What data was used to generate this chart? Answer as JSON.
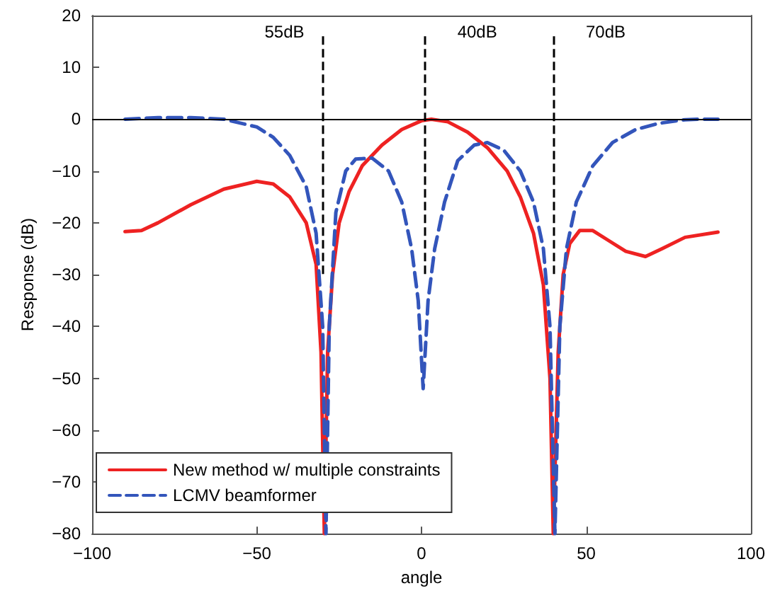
{
  "chart_data": {
    "type": "line",
    "xlabel": "angle",
    "ylabel": "Response (dB)",
    "xlim": [
      -100,
      100
    ],
    "xticks": [
      -100,
      -50,
      0,
      50,
      100
    ],
    "ylim": [
      -80,
      20
    ],
    "yticks": [
      -80,
      -70,
      -60,
      -50,
      -40,
      -30,
      -20,
      -10,
      0,
      10,
      20
    ],
    "grid": false,
    "legend": "bottom left",
    "marker": "none",
    "series": [
      {
        "name": "New method w/ multiple constraints",
        "color": "#ee2222",
        "line_style": "solid",
        "x": [
          -90,
          -85,
          -80,
          -70,
          -60,
          -50,
          -45,
          -40,
          -35,
          -32,
          -30.5,
          -29.5,
          -28.5,
          -27,
          -25,
          -22,
          -18,
          -12,
          -6,
          0,
          3,
          8,
          14,
          20,
          26,
          30,
          34,
          37,
          39,
          40,
          41.5,
          43,
          45,
          48,
          52,
          57,
          62,
          68,
          73,
          80,
          90
        ],
        "values": [
          -21.7,
          -21.5,
          -20,
          -16.5,
          -13.5,
          -12,
          -12.5,
          -15,
          -20,
          -28,
          -45,
          -80,
          -45,
          -30,
          -20,
          -14,
          -9,
          -5,
          -2,
          -0.3,
          0,
          -0.5,
          -2.5,
          -5.5,
          -10,
          -15,
          -22,
          -32,
          -50,
          -80,
          -45,
          -30,
          -24,
          -21.5,
          -21.5,
          -23.5,
          -25.5,
          -26.5,
          -25,
          -22.8,
          -21.8
        ]
      },
      {
        "name": "LCMV beamformer",
        "color": "#3355bb",
        "line_style": "dashed",
        "x": [
          -90,
          -80,
          -70,
          -60,
          -50,
          -45,
          -40,
          -35,
          -32,
          -30,
          -29,
          -28,
          -26,
          -23,
          -20,
          -15,
          -10,
          -6,
          -3,
          -1,
          0.5,
          2,
          4,
          7,
          11,
          16,
          20,
          25,
          30,
          34,
          37,
          39,
          40.5,
          42,
          44,
          47,
          52,
          58,
          65,
          72,
          80,
          85,
          90
        ],
        "values": [
          0,
          0.3,
          0.3,
          0,
          -1.5,
          -3.5,
          -7,
          -13,
          -22,
          -40,
          -80,
          -40,
          -18,
          -10,
          -7.7,
          -7.5,
          -10,
          -16,
          -25,
          -35,
          -52,
          -35,
          -25,
          -16,
          -8,
          -5,
          -4.5,
          -6,
          -10,
          -16,
          -25,
          -40,
          -80,
          -40,
          -25,
          -16,
          -9,
          -4.5,
          -2,
          -0.8,
          -0.1,
          0,
          0
        ]
      }
    ],
    "ref_lines": [
      {
        "axis": "x",
        "value": -30,
        "label": "55dB",
        "line_style": "dashed",
        "color": "#000000"
      },
      {
        "axis": "x",
        "value": 1,
        "label": "40dB",
        "line_style": "dashed",
        "color": "#000000"
      },
      {
        "axis": "x",
        "value": 40,
        "label": "70dB",
        "line_style": "dashed",
        "color": "#000000"
      },
      {
        "axis": "y",
        "value": 0,
        "label": null,
        "line_style": "solid",
        "color": "#000000"
      }
    ]
  }
}
